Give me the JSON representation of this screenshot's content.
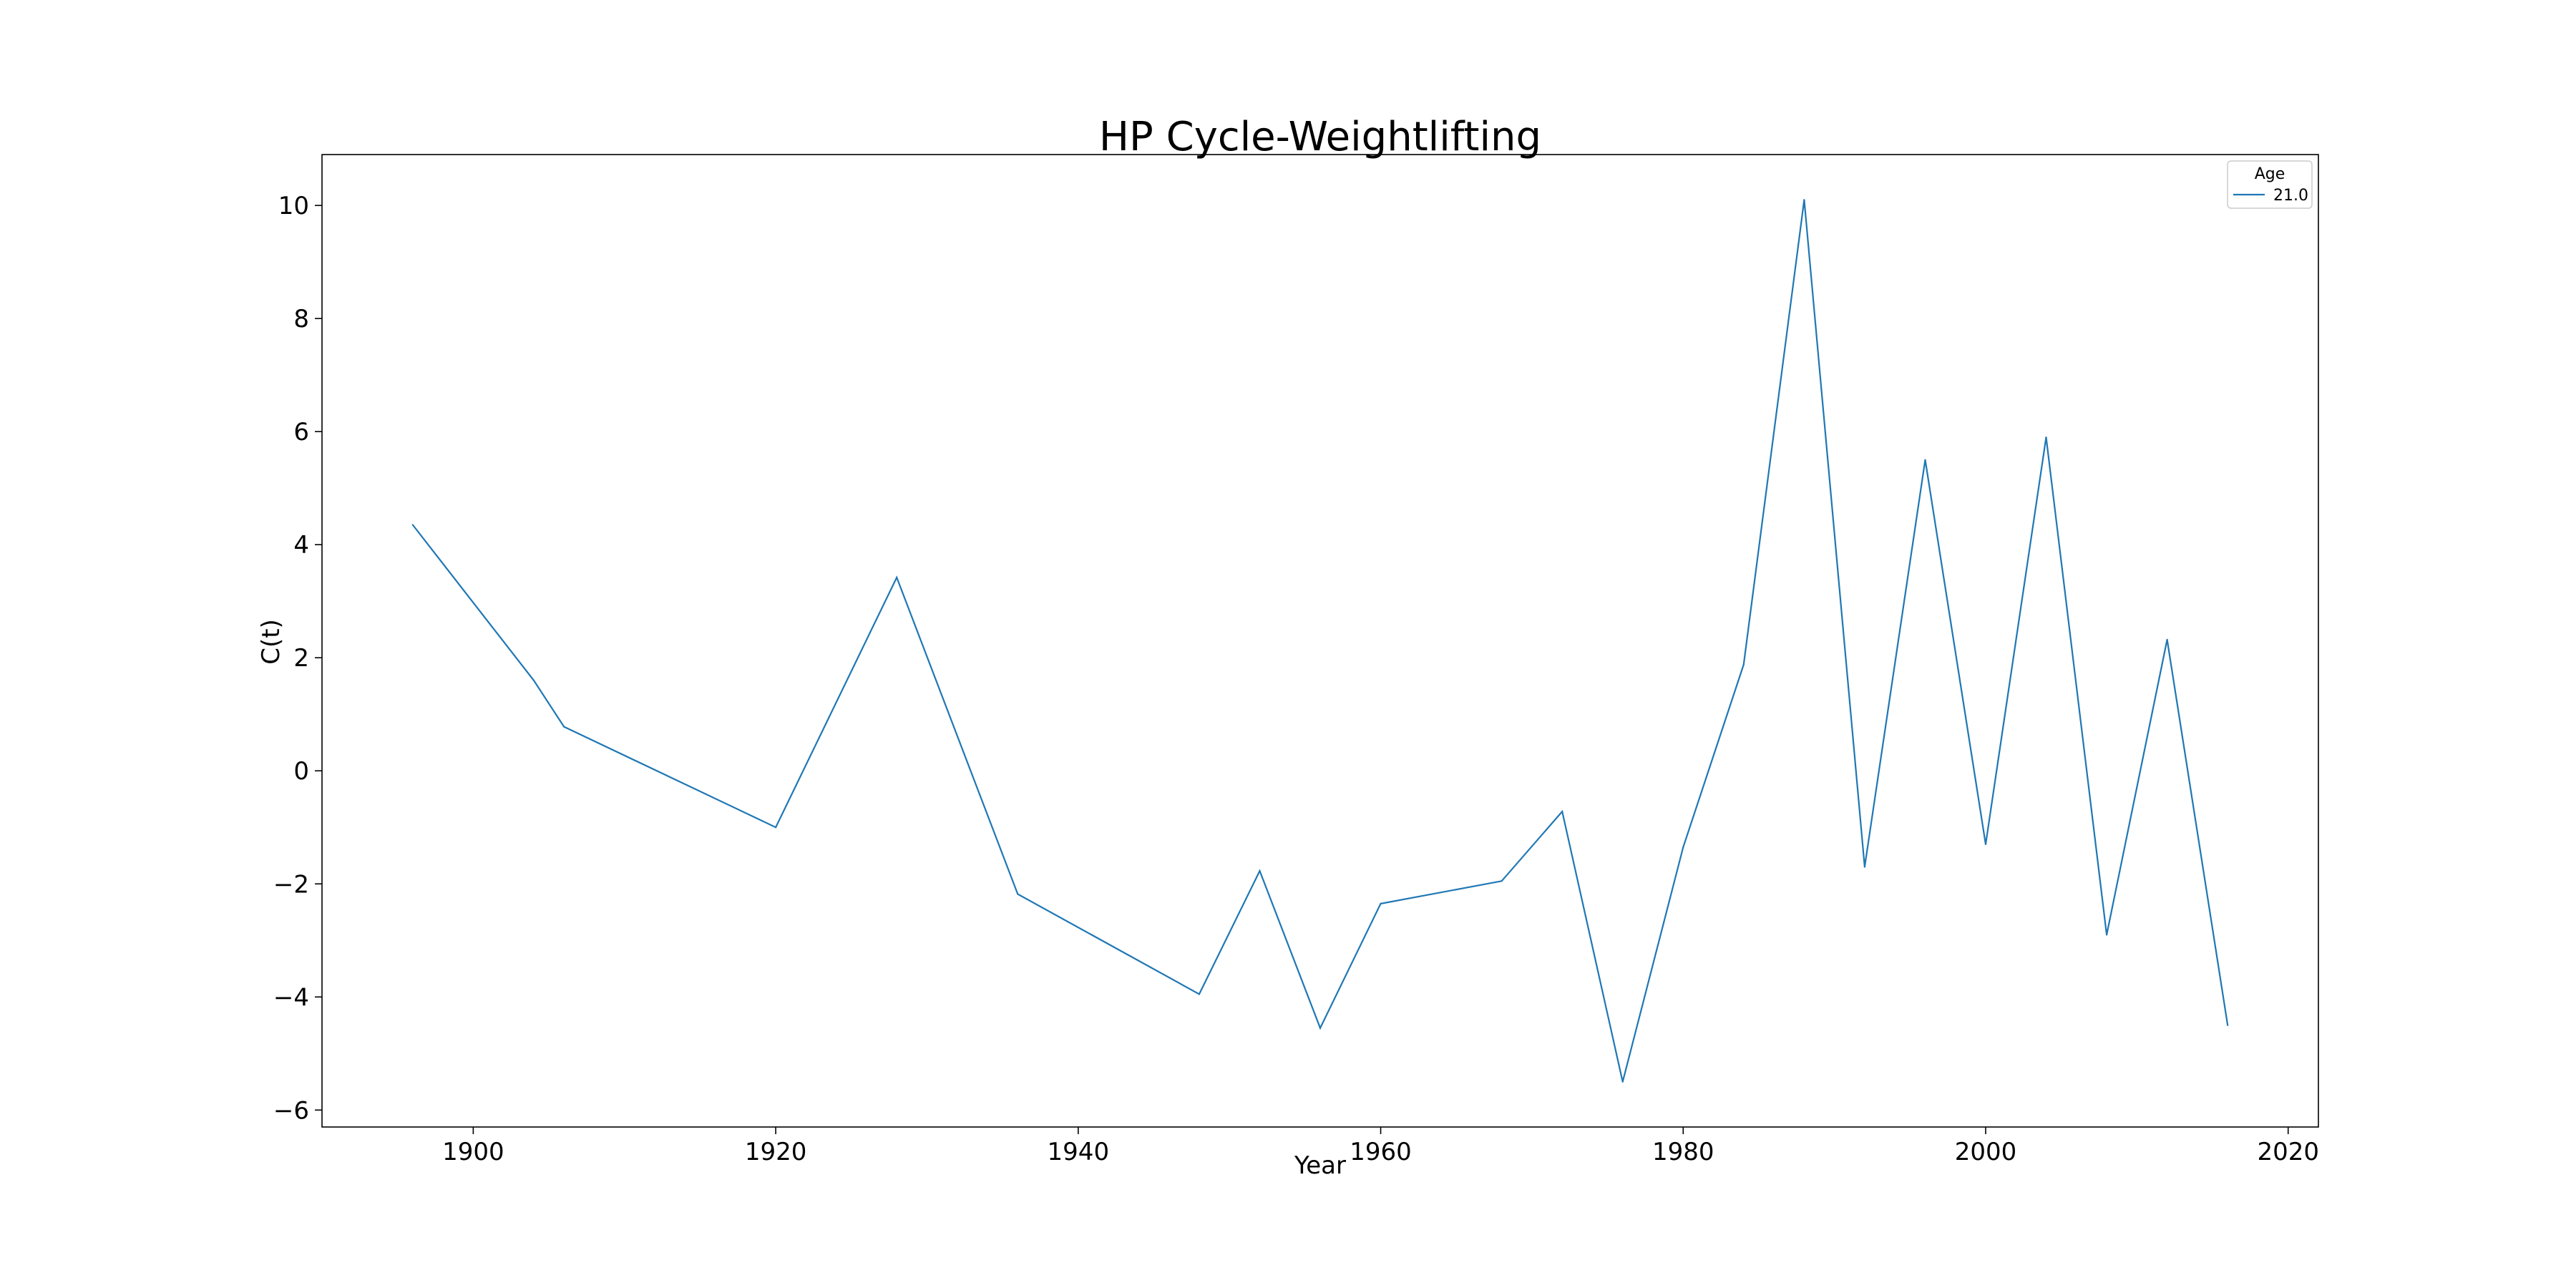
{
  "chart_data": {
    "type": "line",
    "title": "HP Cycle-Weightlifting",
    "xlabel": "Year",
    "ylabel": "C(t)",
    "xlim": [
      1890,
      2022
    ],
    "ylim": [
      -6.3,
      10.9
    ],
    "xticks": [
      1900,
      1920,
      1940,
      1960,
      1980,
      2000,
      2020
    ],
    "yticks": [
      -6,
      -4,
      -2,
      0,
      2,
      4,
      6,
      8,
      10
    ],
    "ytick_labels": [
      "−6",
      "−4",
      "−2",
      "0",
      "2",
      "4",
      "6",
      "8",
      "10"
    ],
    "grid": false,
    "legend": {
      "title": "Age",
      "placement": "top-right"
    },
    "series": [
      {
        "name": "21.0",
        "color": "#1f77b4",
        "x": [
          1896,
          1904,
          1906,
          1920,
          1928,
          1936,
          1948,
          1952,
          1956,
          1960,
          1968,
          1972,
          1976,
          1980,
          1984,
          1988,
          1992,
          1996,
          2000,
          2004,
          2008,
          2012,
          2016
        ],
        "y": [
          4.35,
          1.6,
          0.78,
          -1.0,
          3.42,
          -2.18,
          -3.95,
          -1.77,
          -4.55,
          -2.35,
          -1.95,
          -0.72,
          -5.5,
          -1.35,
          1.88,
          10.1,
          -1.7,
          5.5,
          -1.3,
          5.9,
          -2.9,
          2.32,
          -4.5
        ]
      }
    ]
  }
}
